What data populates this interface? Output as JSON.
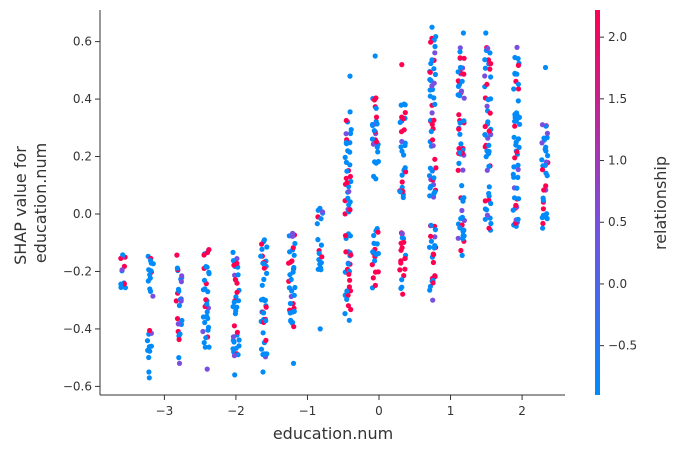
{
  "chart_data": {
    "type": "scatter",
    "title": "",
    "xlabel": "education.num",
    "ylabel_lines": [
      "SHAP value for",
      "education.num"
    ],
    "xlim": [
      -3.9,
      2.6
    ],
    "ylim": [
      -0.63,
      0.71
    ],
    "x_ticks": [
      -3,
      -2,
      -1,
      0,
      1,
      2
    ],
    "x_tick_labels": [
      "−3",
      "−2",
      "−1",
      "0",
      "1",
      "2"
    ],
    "y_ticks": [
      -0.6,
      -0.4,
      -0.2,
      0.0,
      0.2,
      0.4,
      0.6
    ],
    "y_tick_labels": [
      "−0.6",
      "−0.4",
      "−0.2",
      "0.0",
      "0.2",
      "0.4",
      "0.6"
    ],
    "grid": false,
    "colorbar": {
      "label": "relationship",
      "range": [
        -0.9,
        2.22
      ],
      "ticks": [
        -0.5,
        0.0,
        0.5,
        1.0,
        1.5,
        2.0
      ],
      "tick_labels": [
        "−0.5",
        "0.0",
        "0.5",
        "1.0",
        "1.5",
        "2.0"
      ],
      "low_color": "#008bfb",
      "high_color": "#ff0051"
    },
    "columns": [
      {
        "x": -3.58,
        "main": [
          [
            -0.26,
            -0.24
          ],
          [
            -0.22,
            -0.14
          ]
        ],
        "outliers": [],
        "red_frac": 0.4
      },
      {
        "x": -3.2,
        "main": [
          [
            -0.5,
            -0.4
          ],
          [
            -0.3,
            -0.14
          ]
        ],
        "outliers": [
          -0.57,
          -0.55
        ],
        "red_frac": 0.05
      },
      {
        "x": -2.8,
        "main": [
          [
            -0.45,
            -0.35
          ],
          [
            -0.32,
            -0.14
          ]
        ],
        "outliers": [
          -0.5,
          -0.52
        ],
        "red_frac": 0.25
      },
      {
        "x": -2.42,
        "main": [
          [
            -0.48,
            -0.1
          ]
        ],
        "outliers": [
          -0.54
        ],
        "red_frac": 0.2
      },
      {
        "x": -2.0,
        "main": [
          [
            -0.5,
            -0.1
          ]
        ],
        "outliers": [
          -0.56
        ],
        "red_frac": 0.25
      },
      {
        "x": -1.61,
        "main": [
          [
            -0.5,
            -0.08
          ]
        ],
        "outliers": [
          -0.55
        ],
        "red_frac": 0.2
      },
      {
        "x": -1.22,
        "main": [
          [
            -0.45,
            -0.06
          ]
        ],
        "outliers": [
          -0.52
        ],
        "red_frac": 0.35
      },
      {
        "x": -0.83,
        "main": [
          [
            -0.2,
            -0.08
          ],
          [
            -0.04,
            0.04
          ]
        ],
        "outliers": [
          -0.4
        ],
        "red_frac": 0.15
      },
      {
        "x": -0.43,
        "main": [
          [
            -0.35,
            -0.05
          ],
          [
            0.0,
            0.38
          ]
        ],
        "outliers": [
          -0.37,
          0.48
        ],
        "red_frac": 0.3
      },
      {
        "x": -0.05,
        "main": [
          [
            -0.26,
            -0.05
          ],
          [
            0.12,
            0.42
          ]
        ],
        "outliers": [
          0.55
        ],
        "red_frac": 0.35
      },
      {
        "x": 0.33,
        "main": [
          [
            -0.28,
            -0.05
          ],
          [
            0.05,
            0.4
          ]
        ],
        "outliers": [
          0.52
        ],
        "red_frac": 0.3
      },
      {
        "x": 0.75,
        "main": [
          [
            -0.28,
            -0.02
          ],
          [
            0.05,
            0.62
          ]
        ],
        "outliers": [
          -0.3,
          0.65
        ],
        "red_frac": 0.35
      },
      {
        "x": 1.15,
        "main": [
          [
            -0.15,
            0.1
          ],
          [
            0.15,
            0.6
          ]
        ],
        "outliers": [
          0.63
        ],
        "red_frac": 0.3
      },
      {
        "x": 1.52,
        "main": [
          [
            -0.06,
            0.1
          ],
          [
            0.15,
            0.6
          ]
        ],
        "outliers": [
          0.63
        ],
        "red_frac": 0.3
      },
      {
        "x": 1.92,
        "main": [
          [
            -0.07,
            0.1
          ],
          [
            0.12,
            0.55
          ]
        ],
        "outliers": [
          0.58
        ],
        "red_frac": 0.25
      },
      {
        "x": 2.32,
        "main": [
          [
            -0.05,
            0.35
          ]
        ],
        "outliers": [
          0.51
        ],
        "red_frac": 0.15
      }
    ]
  }
}
